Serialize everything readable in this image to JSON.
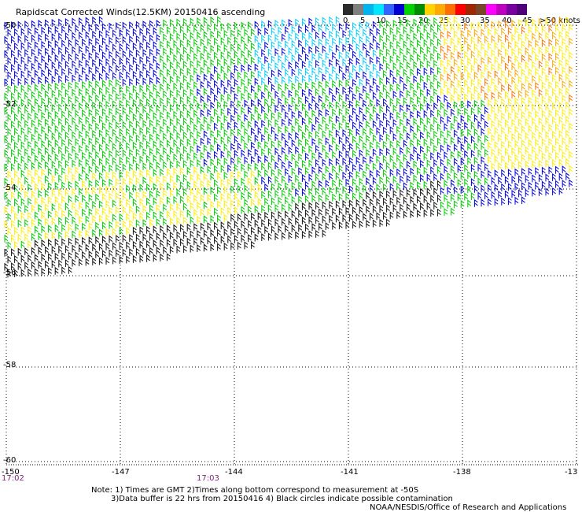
{
  "title": "Rapidscat Corrected Winds(12.5KM) 20150416 ascending",
  "legend": {
    "colors": [
      "#2b2b2b",
      "#7f7f7f",
      "#00b4f0",
      "#00e6ff",
      "#3264ff",
      "#0000d2",
      "#00d200",
      "#008c00",
      "#ffd200",
      "#ffaa00",
      "#ff6e00",
      "#ff0000",
      "#a02800",
      "#7a4628",
      "#ff00ff",
      "#c000c0",
      "#7800a0",
      "#500078"
    ],
    "labels": [
      "0",
      "5",
      "10",
      "15",
      "20",
      "25",
      "30",
      "35",
      "40",
      "45",
      ">50 knots"
    ]
  },
  "lat_labels": [
    "-50",
    "-52",
    "-54",
    "-56",
    "-58",
    "-60"
  ],
  "lon_labels": [
    "-150",
    "-147",
    "-144",
    "-141",
    "-138",
    "-13"
  ],
  "times": [
    "17:02",
    "17:03"
  ],
  "notes": [
    "Note: 1) Times are GMT 2)Times along bottom correspond to measurement at -50S",
    "3)Data buffer is 22 hrs from 20150416 4) Black circles indicate possible contamination",
    "NOAA/NESDIS/Office of Research and Applications"
  ],
  "wind_colors": {
    "lt5": "#111111",
    "5_10": "#00ccff",
    "10_15": "#0000dd",
    "15_20": "#00cc00",
    "20_25": "#ffee00",
    "25_30": "#ffaa00",
    "30_35": "#ff7700"
  }
}
